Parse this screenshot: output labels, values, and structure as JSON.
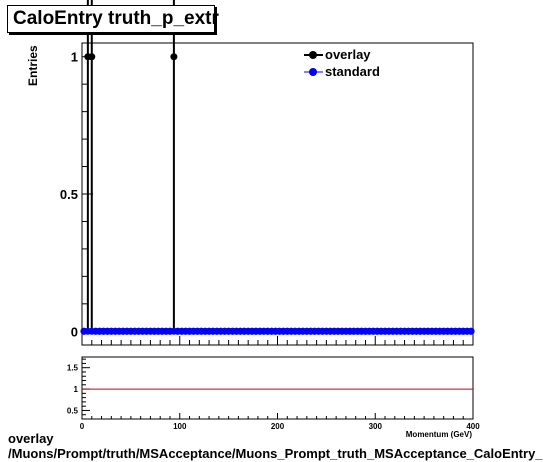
{
  "title": "CaloEntry truth_p_extr",
  "footer": {
    "line1": "overlay",
    "line2": "/Muons/Prompt/truth/MSAcceptance/Muons_Prompt_truth_MSAcceptance_CaloEntry_"
  },
  "colors": {
    "overlay": "#000000",
    "standard": "#0000ff",
    "ratio_line": "#cc0000",
    "axis": "#000000"
  },
  "chart_data": [
    {
      "type": "line",
      "title": "CaloEntry truth_p_extr",
      "xlabel": "Momentum (GeV)",
      "ylabel": "Entries",
      "xlim": [
        0,
        400
      ],
      "ylim": [
        -0.05,
        1.05
      ],
      "x_ticks": [
        0,
        100,
        200,
        300,
        400
      ],
      "y_ticks": [
        0,
        0.5,
        1
      ],
      "y_tick_labels": [
        "0",
        "0.5",
        "1"
      ],
      "legend": {
        "placement": "top-right",
        "entries": [
          "overlay",
          "standard"
        ]
      },
      "series": [
        {
          "name": "overlay",
          "color": "#000000",
          "marker": "circle",
          "bin_width": 4,
          "nonzero": [
            [
              6,
              1
            ],
            [
              10,
              1
            ],
            [
              94,
              1
            ]
          ],
          "x": [
            2,
            6,
            10,
            14,
            18,
            22,
            26,
            30,
            34,
            38,
            42,
            46,
            50,
            54,
            58,
            62,
            66,
            70,
            74,
            78,
            82,
            86,
            90,
            94,
            98,
            102,
            106,
            110,
            114,
            118,
            122,
            126,
            130,
            134,
            138,
            142,
            146,
            150,
            154,
            158,
            162,
            166,
            170,
            174,
            178,
            182,
            186,
            190,
            194,
            198,
            202,
            206,
            210,
            214,
            218,
            222,
            226,
            230,
            234,
            238,
            242,
            246,
            250,
            254,
            258,
            262,
            266,
            270,
            274,
            278,
            282,
            286,
            290,
            294,
            298,
            302,
            306,
            310,
            314,
            318,
            322,
            326,
            330,
            334,
            338,
            342,
            346,
            350,
            354,
            358,
            362,
            366,
            370,
            374,
            378,
            382,
            386,
            390,
            394,
            398
          ],
          "values": [
            0,
            1,
            1,
            0,
            0,
            0,
            0,
            0,
            0,
            0,
            0,
            0,
            0,
            0,
            0,
            0,
            0,
            0,
            0,
            0,
            0,
            0,
            0,
            1,
            0,
            0,
            0,
            0,
            0,
            0,
            0,
            0,
            0,
            0,
            0,
            0,
            0,
            0,
            0,
            0,
            0,
            0,
            0,
            0,
            0,
            0,
            0,
            0,
            0,
            0,
            0,
            0,
            0,
            0,
            0,
            0,
            0,
            0,
            0,
            0,
            0,
            0,
            0,
            0,
            0,
            0,
            0,
            0,
            0,
            0,
            0,
            0,
            0,
            0,
            0,
            0,
            0,
            0,
            0,
            0,
            0,
            0,
            0,
            0,
            0,
            0,
            0,
            0,
            0,
            0,
            0,
            0,
            0,
            0,
            0,
            0,
            0,
            0,
            0,
            0
          ]
        },
        {
          "name": "standard",
          "color": "#0000ff",
          "marker": "circle",
          "bin_width": 4,
          "x": [
            2,
            6,
            10,
            14,
            18,
            22,
            26,
            30,
            34,
            38,
            42,
            46,
            50,
            54,
            58,
            62,
            66,
            70,
            74,
            78,
            82,
            86,
            90,
            94,
            98,
            102,
            106,
            110,
            114,
            118,
            122,
            126,
            130,
            134,
            138,
            142,
            146,
            150,
            154,
            158,
            162,
            166,
            170,
            174,
            178,
            182,
            186,
            190,
            194,
            198,
            202,
            206,
            210,
            214,
            218,
            222,
            226,
            230,
            234,
            238,
            242,
            246,
            250,
            254,
            258,
            262,
            266,
            270,
            274,
            278,
            282,
            286,
            290,
            294,
            298,
            302,
            306,
            310,
            314,
            318,
            322,
            326,
            330,
            334,
            338,
            342,
            346,
            350,
            354,
            358,
            362,
            366,
            370,
            374,
            378,
            382,
            386,
            390,
            394,
            398
          ],
          "values": [
            0,
            0,
            0,
            0,
            0,
            0,
            0,
            0,
            0,
            0,
            0,
            0,
            0,
            0,
            0,
            0,
            0,
            0,
            0,
            0,
            0,
            0,
            0,
            0,
            0,
            0,
            0,
            0,
            0,
            0,
            0,
            0,
            0,
            0,
            0,
            0,
            0,
            0,
            0,
            0,
            0,
            0,
            0,
            0,
            0,
            0,
            0,
            0,
            0,
            0,
            0,
            0,
            0,
            0,
            0,
            0,
            0,
            0,
            0,
            0,
            0,
            0,
            0,
            0,
            0,
            0,
            0,
            0,
            0,
            0,
            0,
            0,
            0,
            0,
            0,
            0,
            0,
            0,
            0,
            0,
            0,
            0,
            0,
            0,
            0,
            0,
            0,
            0,
            0,
            0,
            0,
            0,
            0,
            0,
            0,
            0,
            0,
            0,
            0,
            0
          ]
        }
      ]
    },
    {
      "type": "line",
      "title": "",
      "xlabel": "Momentum (GeV)",
      "ylabel": "",
      "xlim": [
        0,
        400
      ],
      "ylim": [
        0.3,
        1.75
      ],
      "x_ticks": [
        0,
        100,
        200,
        300,
        400
      ],
      "x_tick_labels": [
        "0",
        "100",
        "200",
        "300",
        "400"
      ],
      "y_ticks": [
        0.5,
        1,
        1.5
      ],
      "y_tick_labels": [
        "0.5",
        "1",
        "1.5"
      ],
      "reference_line": 1,
      "series": []
    }
  ]
}
